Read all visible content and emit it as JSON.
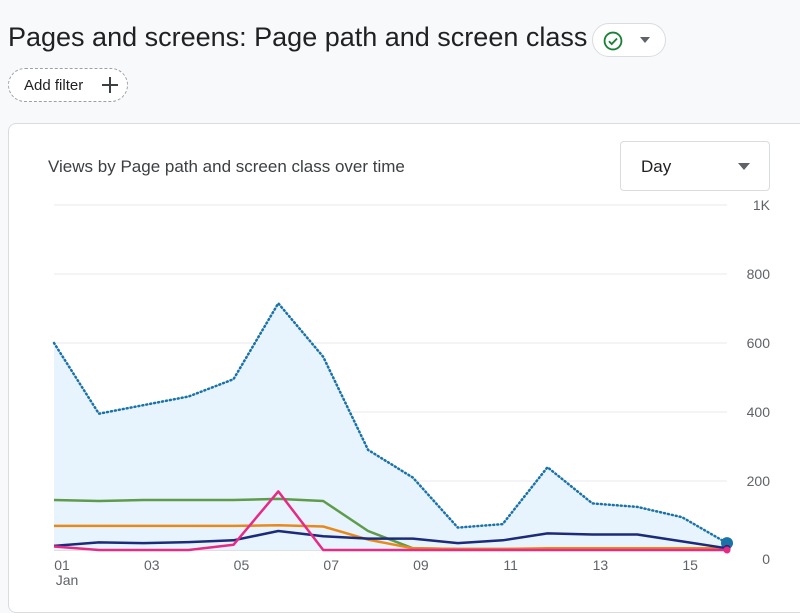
{
  "header": {
    "title": "Pages and screens: Page path and screen class",
    "status_icon": "check-circle-icon",
    "status_color": "#188038",
    "dropdown_icon": "chevron-down-icon"
  },
  "filter": {
    "add_label": "Add filter",
    "icon": "plus-icon"
  },
  "card": {
    "title": "Views by Page path and screen class over time",
    "granularity": {
      "selected": "Day",
      "icon": "dropdown-arrow-icon"
    }
  },
  "chart_data": {
    "type": "line",
    "title": "",
    "x": [
      1,
      2,
      3,
      4,
      5,
      6,
      7,
      8,
      9,
      10,
      11,
      12,
      13,
      14,
      15,
      16
    ],
    "x_ticks": [
      {
        "value": 1,
        "label": "01",
        "sublabel": "Jan"
      },
      {
        "value": 3,
        "label": "03"
      },
      {
        "value": 5,
        "label": "05"
      },
      {
        "value": 7,
        "label": "07"
      },
      {
        "value": 9,
        "label": "09"
      },
      {
        "value": 11,
        "label": "11"
      },
      {
        "value": 13,
        "label": "13"
      },
      {
        "value": 15,
        "label": "15"
      }
    ],
    "y_ticks": [
      {
        "value": 0,
        "label": "0"
      },
      {
        "value": 200,
        "label": "200"
      },
      {
        "value": 400,
        "label": "400"
      },
      {
        "value": 600,
        "label": "600"
      },
      {
        "value": 800,
        "label": "800"
      },
      {
        "value": 1000,
        "label": "1K"
      }
    ],
    "ylim": [
      0,
      1000
    ],
    "y_axis_position": "right",
    "grid": true,
    "series": [
      {
        "color": "#1a73a8",
        "style": "dotted",
        "area": true,
        "area_color": "#e8f4fd",
        "values": [
          600,
          395,
          420,
          445,
          495,
          715,
          560,
          290,
          210,
          65,
          75,
          240,
          135,
          125,
          95,
          20
        ]
      },
      {
        "color": "#5e9b4a",
        "style": "solid",
        "values": [
          145,
          142,
          145,
          145,
          145,
          148,
          142,
          55,
          5,
          3,
          3,
          3,
          3,
          3,
          3,
          3
        ]
      },
      {
        "color": "#e8891d",
        "style": "solid",
        "values": [
          70,
          70,
          70,
          70,
          70,
          72,
          68,
          30,
          5,
          3,
          3,
          5,
          5,
          5,
          5,
          5
        ]
      },
      {
        "color": "#1c2a7a",
        "style": "solid",
        "values": [
          12,
          22,
          20,
          23,
          28,
          55,
          40,
          33,
          33,
          20,
          28,
          48,
          45,
          45,
          25,
          5
        ]
      },
      {
        "color": "#e52b86",
        "style": "solid",
        "values": [
          10,
          0,
          0,
          0,
          15,
          170,
          0,
          0,
          0,
          0,
          0,
          0,
          0,
          0,
          0,
          0
        ]
      }
    ]
  }
}
